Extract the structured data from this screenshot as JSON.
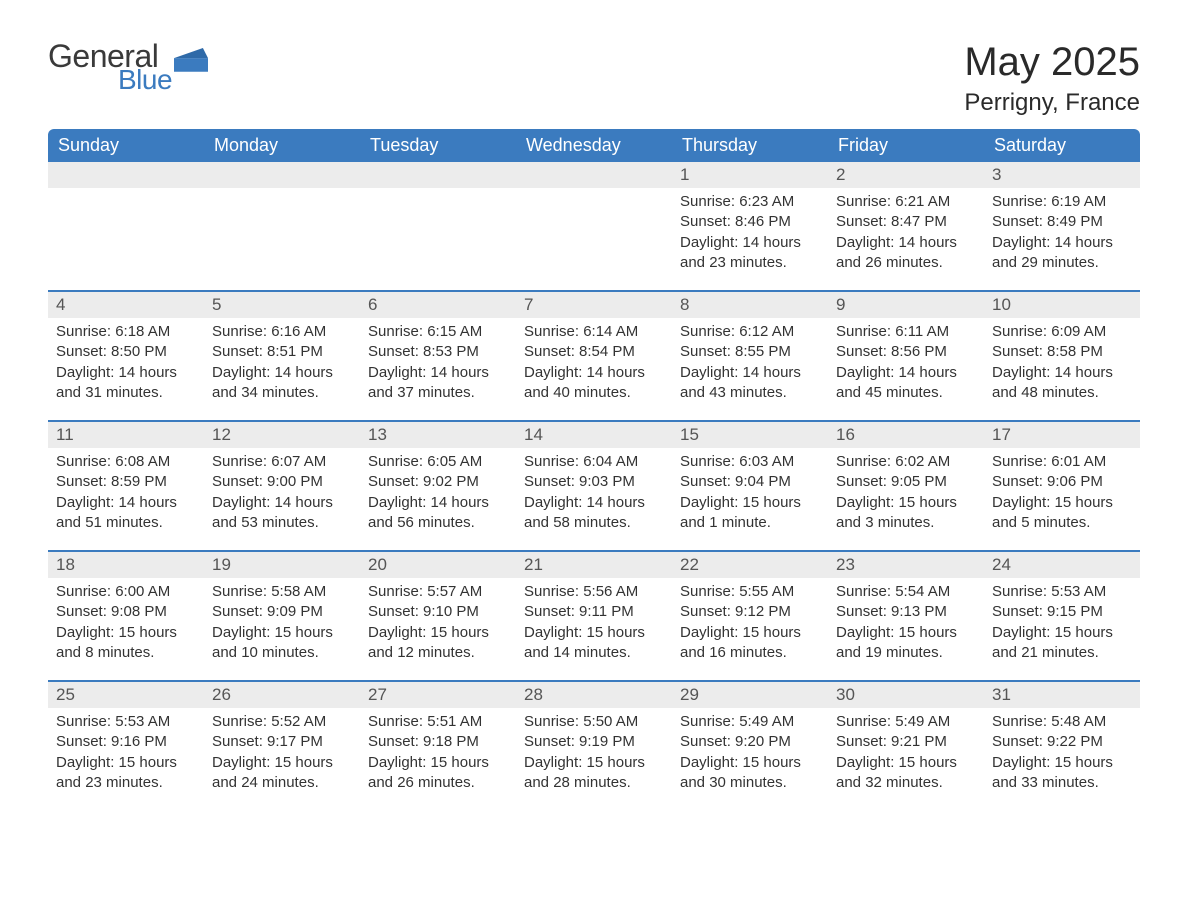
{
  "logo": {
    "word1": "General",
    "word2": "Blue"
  },
  "title": "May 2025",
  "location": "Perrigny, France",
  "colors": {
    "header_bg": "#3b7bbf",
    "header_text": "#ffffff",
    "daynum_bg": "#ececec",
    "week_border": "#3b7bbf",
    "body_bg": "#ffffff",
    "text": "#333333"
  },
  "day_names": [
    "Sunday",
    "Monday",
    "Tuesday",
    "Wednesday",
    "Thursday",
    "Friday",
    "Saturday"
  ],
  "weeks": [
    [
      null,
      null,
      null,
      null,
      {
        "n": "1",
        "sunrise": "Sunrise: 6:23 AM",
        "sunset": "Sunset: 8:46 PM",
        "daylight": "Daylight: 14 hours and 23 minutes."
      },
      {
        "n": "2",
        "sunrise": "Sunrise: 6:21 AM",
        "sunset": "Sunset: 8:47 PM",
        "daylight": "Daylight: 14 hours and 26 minutes."
      },
      {
        "n": "3",
        "sunrise": "Sunrise: 6:19 AM",
        "sunset": "Sunset: 8:49 PM",
        "daylight": "Daylight: 14 hours and 29 minutes."
      }
    ],
    [
      {
        "n": "4",
        "sunrise": "Sunrise: 6:18 AM",
        "sunset": "Sunset: 8:50 PM",
        "daylight": "Daylight: 14 hours and 31 minutes."
      },
      {
        "n": "5",
        "sunrise": "Sunrise: 6:16 AM",
        "sunset": "Sunset: 8:51 PM",
        "daylight": "Daylight: 14 hours and 34 minutes."
      },
      {
        "n": "6",
        "sunrise": "Sunrise: 6:15 AM",
        "sunset": "Sunset: 8:53 PM",
        "daylight": "Daylight: 14 hours and 37 minutes."
      },
      {
        "n": "7",
        "sunrise": "Sunrise: 6:14 AM",
        "sunset": "Sunset: 8:54 PM",
        "daylight": "Daylight: 14 hours and 40 minutes."
      },
      {
        "n": "8",
        "sunrise": "Sunrise: 6:12 AM",
        "sunset": "Sunset: 8:55 PM",
        "daylight": "Daylight: 14 hours and 43 minutes."
      },
      {
        "n": "9",
        "sunrise": "Sunrise: 6:11 AM",
        "sunset": "Sunset: 8:56 PM",
        "daylight": "Daylight: 14 hours and 45 minutes."
      },
      {
        "n": "10",
        "sunrise": "Sunrise: 6:09 AM",
        "sunset": "Sunset: 8:58 PM",
        "daylight": "Daylight: 14 hours and 48 minutes."
      }
    ],
    [
      {
        "n": "11",
        "sunrise": "Sunrise: 6:08 AM",
        "sunset": "Sunset: 8:59 PM",
        "daylight": "Daylight: 14 hours and 51 minutes."
      },
      {
        "n": "12",
        "sunrise": "Sunrise: 6:07 AM",
        "sunset": "Sunset: 9:00 PM",
        "daylight": "Daylight: 14 hours and 53 minutes."
      },
      {
        "n": "13",
        "sunrise": "Sunrise: 6:05 AM",
        "sunset": "Sunset: 9:02 PM",
        "daylight": "Daylight: 14 hours and 56 minutes."
      },
      {
        "n": "14",
        "sunrise": "Sunrise: 6:04 AM",
        "sunset": "Sunset: 9:03 PM",
        "daylight": "Daylight: 14 hours and 58 minutes."
      },
      {
        "n": "15",
        "sunrise": "Sunrise: 6:03 AM",
        "sunset": "Sunset: 9:04 PM",
        "daylight": "Daylight: 15 hours and 1 minute."
      },
      {
        "n": "16",
        "sunrise": "Sunrise: 6:02 AM",
        "sunset": "Sunset: 9:05 PM",
        "daylight": "Daylight: 15 hours and 3 minutes."
      },
      {
        "n": "17",
        "sunrise": "Sunrise: 6:01 AM",
        "sunset": "Sunset: 9:06 PM",
        "daylight": "Daylight: 15 hours and 5 minutes."
      }
    ],
    [
      {
        "n": "18",
        "sunrise": "Sunrise: 6:00 AM",
        "sunset": "Sunset: 9:08 PM",
        "daylight": "Daylight: 15 hours and 8 minutes."
      },
      {
        "n": "19",
        "sunrise": "Sunrise: 5:58 AM",
        "sunset": "Sunset: 9:09 PM",
        "daylight": "Daylight: 15 hours and 10 minutes."
      },
      {
        "n": "20",
        "sunrise": "Sunrise: 5:57 AM",
        "sunset": "Sunset: 9:10 PM",
        "daylight": "Daylight: 15 hours and 12 minutes."
      },
      {
        "n": "21",
        "sunrise": "Sunrise: 5:56 AM",
        "sunset": "Sunset: 9:11 PM",
        "daylight": "Daylight: 15 hours and 14 minutes."
      },
      {
        "n": "22",
        "sunrise": "Sunrise: 5:55 AM",
        "sunset": "Sunset: 9:12 PM",
        "daylight": "Daylight: 15 hours and 16 minutes."
      },
      {
        "n": "23",
        "sunrise": "Sunrise: 5:54 AM",
        "sunset": "Sunset: 9:13 PM",
        "daylight": "Daylight: 15 hours and 19 minutes."
      },
      {
        "n": "24",
        "sunrise": "Sunrise: 5:53 AM",
        "sunset": "Sunset: 9:15 PM",
        "daylight": "Daylight: 15 hours and 21 minutes."
      }
    ],
    [
      {
        "n": "25",
        "sunrise": "Sunrise: 5:53 AM",
        "sunset": "Sunset: 9:16 PM",
        "daylight": "Daylight: 15 hours and 23 minutes."
      },
      {
        "n": "26",
        "sunrise": "Sunrise: 5:52 AM",
        "sunset": "Sunset: 9:17 PM",
        "daylight": "Daylight: 15 hours and 24 minutes."
      },
      {
        "n": "27",
        "sunrise": "Sunrise: 5:51 AM",
        "sunset": "Sunset: 9:18 PM",
        "daylight": "Daylight: 15 hours and 26 minutes."
      },
      {
        "n": "28",
        "sunrise": "Sunrise: 5:50 AM",
        "sunset": "Sunset: 9:19 PM",
        "daylight": "Daylight: 15 hours and 28 minutes."
      },
      {
        "n": "29",
        "sunrise": "Sunrise: 5:49 AM",
        "sunset": "Sunset: 9:20 PM",
        "daylight": "Daylight: 15 hours and 30 minutes."
      },
      {
        "n": "30",
        "sunrise": "Sunrise: 5:49 AM",
        "sunset": "Sunset: 9:21 PM",
        "daylight": "Daylight: 15 hours and 32 minutes."
      },
      {
        "n": "31",
        "sunrise": "Sunrise: 5:48 AM",
        "sunset": "Sunset: 9:22 PM",
        "daylight": "Daylight: 15 hours and 33 minutes."
      }
    ]
  ]
}
